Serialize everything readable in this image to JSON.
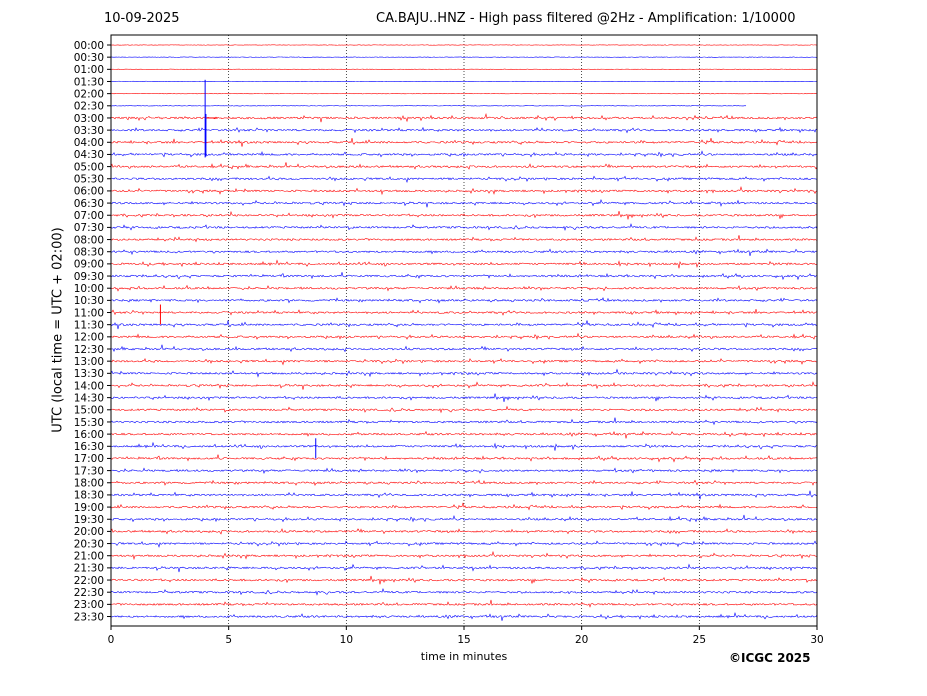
{
  "header": {
    "date": "10-09-2025",
    "title": "CA.BAJU..HNZ - High pass filtered @2Hz - Amplification: 1/10000"
  },
  "footer": {
    "copyright": "©ICGC 2025"
  },
  "colors": {
    "even_trace": "#ff0000",
    "odd_trace": "#0000ff",
    "axis": "#000000",
    "grid": "#000000"
  },
  "chart_data": {
    "type": "line",
    "title": "CA.BAJU..HNZ - High pass filtered @2Hz - Amplification: 1/10000",
    "xlabel": "time in minutes",
    "ylabel": "UTC (local time = UTC + 02:00)",
    "xlim": [
      0,
      30
    ],
    "x_ticks": [
      0,
      5,
      10,
      15,
      20,
      25,
      30
    ],
    "grid": "vertical dotted lines at 5-minute intervals",
    "rows": [
      "00:00",
      "00:30",
      "01:00",
      "01:30",
      "02:00",
      "02:30",
      "03:00",
      "03:30",
      "04:00",
      "04:30",
      "05:00",
      "05:30",
      "06:00",
      "06:30",
      "07:00",
      "07:30",
      "08:00",
      "08:30",
      "09:00",
      "09:30",
      "10:00",
      "10:30",
      "11:00",
      "11:30",
      "12:00",
      "12:30",
      "13:00",
      "13:30",
      "14:00",
      "14:30",
      "15:00",
      "15:30",
      "16:00",
      "16:30",
      "17:00",
      "17:30",
      "18:00",
      "18:30",
      "19:00",
      "19:30",
      "20:00",
      "20:30",
      "21:00",
      "21:30",
      "22:00",
      "22:30",
      "23:00",
      "23:30"
    ],
    "color_pattern": [
      "red",
      "blue"
    ],
    "notable_events": [
      {
        "row": "02:30",
        "minute": 4.0,
        "note": "large spike extending to 04:30"
      },
      {
        "row": "11:00",
        "minute": 2.1,
        "note": "spike"
      },
      {
        "row": "16:30",
        "minute": 8.7,
        "note": "spike"
      }
    ]
  }
}
